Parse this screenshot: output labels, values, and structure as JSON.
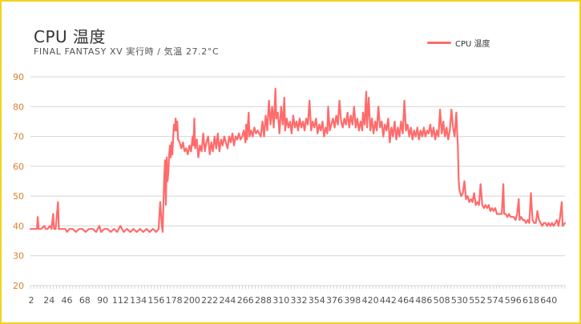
{
  "colors": {
    "border": "#f3d21c",
    "series": "#ff6b6b",
    "ytick": "#d9822b",
    "grid": "#d4d4d4",
    "xtick": "#555555"
  },
  "chart_data": {
    "type": "line",
    "title": "CPU 温度",
    "subtitle": "FINAL FANTASY XV 実行時 / 気温 27.2°C",
    "legend": {
      "position": "top-right"
    },
    "grid": true,
    "ylim": [
      20,
      90
    ],
    "yticks": [
      20,
      30,
      40,
      50,
      60,
      70,
      80,
      90
    ],
    "x_range": [
      1,
      660
    ],
    "xticks": [
      2,
      24,
      46,
      68,
      90,
      112,
      134,
      156,
      178,
      200,
      222,
      244,
      266,
      288,
      310,
      332,
      354,
      376,
      398,
      420,
      442,
      464,
      486,
      508,
      530,
      552,
      574,
      596,
      618,
      640
    ],
    "series": [
      {
        "name": "CPU 温度",
        "points": [
          [
            1,
            39
          ],
          [
            5,
            39
          ],
          [
            9,
            39
          ],
          [
            10,
            43
          ],
          [
            11,
            39
          ],
          [
            14,
            39
          ],
          [
            18,
            40
          ],
          [
            20,
            39
          ],
          [
            22,
            39
          ],
          [
            25,
            40
          ],
          [
            27,
            39
          ],
          [
            29,
            44
          ],
          [
            30,
            39
          ],
          [
            32,
            39
          ],
          [
            35,
            48
          ],
          [
            36,
            39
          ],
          [
            40,
            39
          ],
          [
            44,
            39
          ],
          [
            46,
            38
          ],
          [
            49,
            39
          ],
          [
            53,
            39
          ],
          [
            57,
            38
          ],
          [
            61,
            39
          ],
          [
            65,
            39
          ],
          [
            69,
            38
          ],
          [
            73,
            39
          ],
          [
            78,
            39
          ],
          [
            82,
            38
          ],
          [
            86,
            40
          ],
          [
            88,
            38
          ],
          [
            92,
            39
          ],
          [
            96,
            39
          ],
          [
            100,
            38
          ],
          [
            104,
            39
          ],
          [
            108,
            38
          ],
          [
            112,
            40
          ],
          [
            116,
            38
          ],
          [
            120,
            39
          ],
          [
            124,
            38
          ],
          [
            128,
            39
          ],
          [
            132,
            38
          ],
          [
            136,
            39
          ],
          [
            140,
            38
          ],
          [
            144,
            39
          ],
          [
            148,
            38
          ],
          [
            152,
            39
          ],
          [
            156,
            38
          ],
          [
            159,
            39
          ],
          [
            161,
            48
          ],
          [
            163,
            40
          ],
          [
            164,
            38
          ],
          [
            165,
            48
          ],
          [
            166,
            57
          ],
          [
            167,
            62
          ],
          [
            168,
            47
          ],
          [
            169,
            63
          ],
          [
            170,
            55
          ],
          [
            171,
            58
          ],
          [
            172,
            64
          ],
          [
            173,
            67
          ],
          [
            174,
            63
          ],
          [
            175,
            68
          ],
          [
            176,
            64
          ],
          [
            177,
            70
          ],
          [
            178,
            74
          ],
          [
            179,
            72
          ],
          [
            180,
            76
          ],
          [
            181,
            72
          ],
          [
            182,
            75
          ],
          [
            183,
            69
          ],
          [
            185,
            68
          ],
          [
            187,
            66
          ],
          [
            189,
            68
          ],
          [
            191,
            65
          ],
          [
            193,
            66
          ],
          [
            195,
            64
          ],
          [
            197,
            67
          ],
          [
            199,
            65
          ],
          [
            201,
            70
          ],
          [
            202,
            67
          ],
          [
            203,
            76
          ],
          [
            204,
            66
          ],
          [
            206,
            69
          ],
          [
            208,
            63
          ],
          [
            210,
            67
          ],
          [
            212,
            65
          ],
          [
            214,
            71
          ],
          [
            216,
            65
          ],
          [
            218,
            68
          ],
          [
            220,
            70
          ],
          [
            222,
            64
          ],
          [
            224,
            68
          ],
          [
            226,
            65
          ],
          [
            228,
            70
          ],
          [
            230,
            66
          ],
          [
            232,
            71
          ],
          [
            234,
            65
          ],
          [
            236,
            69
          ],
          [
            238,
            67
          ],
          [
            240,
            70
          ],
          [
            242,
            68
          ],
          [
            244,
            66
          ],
          [
            246,
            70
          ],
          [
            248,
            68
          ],
          [
            250,
            71
          ],
          [
            252,
            67
          ],
          [
            254,
            70
          ],
          [
            256,
            69
          ],
          [
            258,
            71
          ],
          [
            260,
            69
          ],
          [
            262,
            70
          ],
          [
            264,
            72
          ],
          [
            266,
            68
          ],
          [
            267,
            74
          ],
          [
            268,
            69
          ],
          [
            270,
            78
          ],
          [
            271,
            70
          ],
          [
            273,
            72
          ],
          [
            275,
            70
          ],
          [
            277,
            73
          ],
          [
            279,
            71
          ],
          [
            281,
            72
          ],
          [
            283,
            71
          ],
          [
            285,
            70
          ],
          [
            287,
            75
          ],
          [
            289,
            70
          ],
          [
            291,
            77
          ],
          [
            293,
            72
          ],
          [
            295,
            82
          ],
          [
            297,
            74
          ],
          [
            299,
            80
          ],
          [
            301,
            73
          ],
          [
            303,
            86
          ],
          [
            304,
            76
          ],
          [
            306,
            78
          ],
          [
            308,
            71
          ],
          [
            310,
            80
          ],
          [
            312,
            74
          ],
          [
            314,
            83
          ],
          [
            315,
            72
          ],
          [
            317,
            76
          ],
          [
            319,
            73
          ],
          [
            321,
            75
          ],
          [
            323,
            71
          ],
          [
            325,
            77
          ],
          [
            327,
            73
          ],
          [
            329,
            75
          ],
          [
            331,
            72
          ],
          [
            333,
            76
          ],
          [
            335,
            73
          ],
          [
            337,
            75
          ],
          [
            339,
            72
          ],
          [
            341,
            76
          ],
          [
            343,
            74
          ],
          [
            345,
            82
          ],
          [
            347,
            72
          ],
          [
            349,
            75
          ],
          [
            351,
            73
          ],
          [
            353,
            76
          ],
          [
            355,
            71
          ],
          [
            357,
            74
          ],
          [
            359,
            72
          ],
          [
            361,
            75
          ],
          [
            363,
            70
          ],
          [
            365,
            73
          ],
          [
            367,
            71
          ],
          [
            368,
            80
          ],
          [
            370,
            72
          ],
          [
            372,
            74
          ],
          [
            374,
            76
          ],
          [
            376,
            73
          ],
          [
            378,
            77
          ],
          [
            380,
            74
          ],
          [
            382,
            82
          ],
          [
            384,
            75
          ],
          [
            386,
            73
          ],
          [
            388,
            76
          ],
          [
            390,
            74
          ],
          [
            392,
            78
          ],
          [
            394,
            73
          ],
          [
            396,
            77
          ],
          [
            398,
            74
          ],
          [
            400,
            80
          ],
          [
            402,
            73
          ],
          [
            404,
            76
          ],
          [
            406,
            72
          ],
          [
            408,
            75
          ],
          [
            410,
            72
          ],
          [
            411,
            78
          ],
          [
            413,
            74
          ],
          [
            415,
            85
          ],
          [
            416,
            73
          ],
          [
            418,
            83
          ],
          [
            420,
            72
          ],
          [
            422,
            76
          ],
          [
            424,
            71
          ],
          [
            426,
            75
          ],
          [
            428,
            72
          ],
          [
            430,
            80
          ],
          [
            432,
            73
          ],
          [
            434,
            75
          ],
          [
            436,
            70
          ],
          [
            438,
            74
          ],
          [
            440,
            72
          ],
          [
            442,
            76
          ],
          [
            444,
            68
          ],
          [
            446,
            73
          ],
          [
            448,
            70
          ],
          [
            450,
            75
          ],
          [
            452,
            69
          ],
          [
            454,
            73
          ],
          [
            456,
            70
          ],
          [
            458,
            75
          ],
          [
            460,
            71
          ],
          [
            462,
            82
          ],
          [
            464,
            72
          ],
          [
            466,
            74
          ],
          [
            468,
            70
          ],
          [
            470,
            73
          ],
          [
            472,
            69
          ],
          [
            474,
            72
          ],
          [
            476,
            70
          ],
          [
            478,
            73
          ],
          [
            480,
            69
          ],
          [
            482,
            72
          ],
          [
            484,
            70
          ],
          [
            486,
            73
          ],
          [
            488,
            70
          ],
          [
            490,
            72
          ],
          [
            492,
            71
          ],
          [
            494,
            74
          ],
          [
            496,
            70
          ],
          [
            498,
            73
          ],
          [
            500,
            69
          ],
          [
            502,
            72
          ],
          [
            504,
            70
          ],
          [
            506,
            79
          ],
          [
            508,
            71
          ],
          [
            510,
            75
          ],
          [
            512,
            70
          ],
          [
            514,
            73
          ],
          [
            516,
            69
          ],
          [
            518,
            72
          ],
          [
            520,
            79
          ],
          [
            522,
            73
          ],
          [
            524,
            70
          ],
          [
            526,
            78
          ],
          [
            527,
            72
          ],
          [
            528,
            66
          ],
          [
            529,
            55
          ],
          [
            530,
            52
          ],
          [
            532,
            50
          ],
          [
            534,
            51
          ],
          [
            536,
            55
          ],
          [
            538,
            49
          ],
          [
            540,
            50
          ],
          [
            542,
            48
          ],
          [
            544,
            49
          ],
          [
            546,
            48
          ],
          [
            548,
            51
          ],
          [
            550,
            47
          ],
          [
            552,
            48
          ],
          [
            554,
            47
          ],
          [
            556,
            54
          ],
          [
            558,
            47
          ],
          [
            560,
            46
          ],
          [
            562,
            47
          ],
          [
            564,
            46
          ],
          [
            566,
            47
          ],
          [
            568,
            45
          ],
          [
            570,
            46
          ],
          [
            572,
            45
          ],
          [
            574,
            46
          ],
          [
            576,
            44
          ],
          [
            578,
            44
          ],
          [
            580,
            44
          ],
          [
            582,
            44
          ],
          [
            584,
            54
          ],
          [
            585,
            44
          ],
          [
            587,
            44
          ],
          [
            589,
            43
          ],
          [
            591,
            44
          ],
          [
            593,
            43
          ],
          [
            595,
            43
          ],
          [
            597,
            43
          ],
          [
            599,
            42
          ],
          [
            601,
            44
          ],
          [
            603,
            49
          ],
          [
            604,
            42
          ],
          [
            606,
            43
          ],
          [
            608,
            42
          ],
          [
            610,
            42
          ],
          [
            612,
            41
          ],
          [
            614,
            42
          ],
          [
            616,
            41
          ],
          [
            618,
            51
          ],
          [
            620,
            42
          ],
          [
            622,
            41
          ],
          [
            624,
            41
          ],
          [
            626,
            45
          ],
          [
            628,
            42
          ],
          [
            630,
            41
          ],
          [
            632,
            40
          ],
          [
            634,
            41
          ],
          [
            636,
            41
          ],
          [
            638,
            40
          ],
          [
            640,
            41
          ],
          [
            642,
            40
          ],
          [
            644,
            41
          ],
          [
            646,
            40
          ],
          [
            648,
            41
          ],
          [
            650,
            42
          ],
          [
            652,
            40
          ],
          [
            654,
            43
          ],
          [
            656,
            48
          ],
          [
            657,
            40
          ],
          [
            660,
            41
          ]
        ]
      }
    ]
  }
}
